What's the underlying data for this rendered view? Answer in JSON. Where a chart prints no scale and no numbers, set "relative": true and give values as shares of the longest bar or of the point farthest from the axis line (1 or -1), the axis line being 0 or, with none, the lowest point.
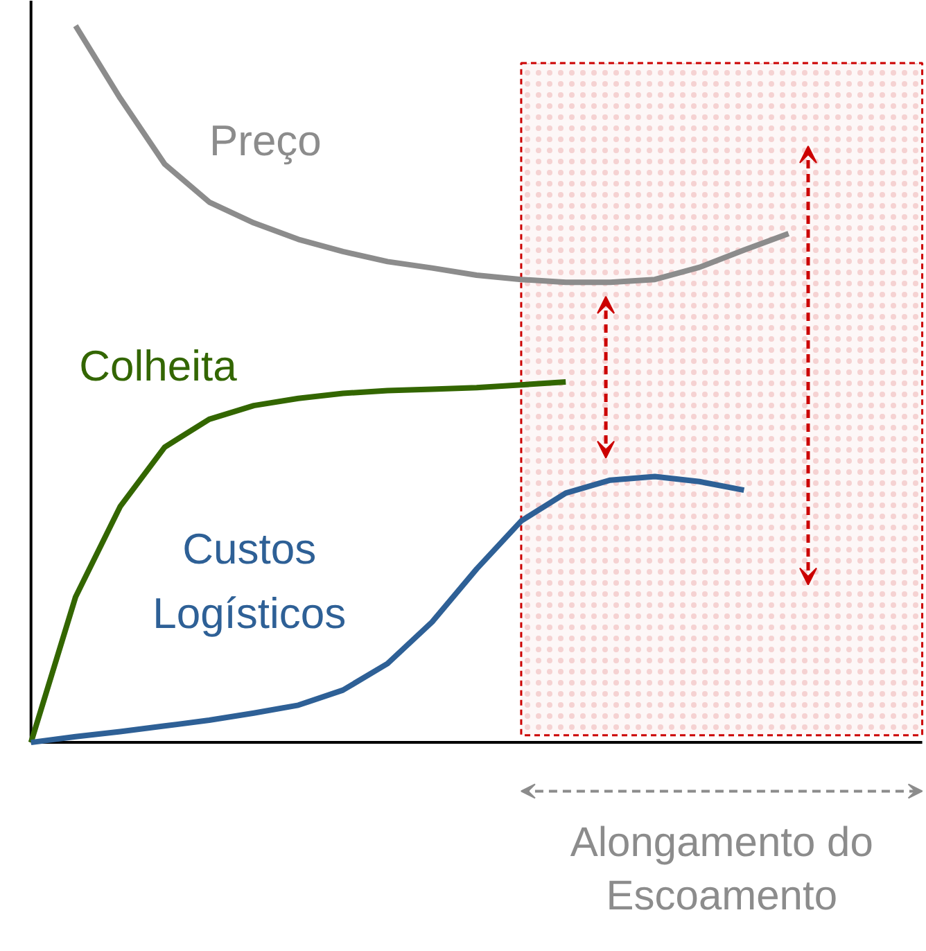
{
  "chart_data": {
    "type": "line",
    "relative": true,
    "tick_labels": false,
    "grid": false,
    "marker": "none",
    "line_style": "solid",
    "categories": [
      null,
      null,
      null,
      null,
      null,
      null,
      null,
      null,
      null,
      null,
      null,
      null,
      null,
      null,
      null,
      null,
      null,
      null,
      null,
      null,
      null
    ],
    "series": [
      {
        "name": "Preço",
        "color": "#8c8c8c",
        "values": [
          null,
          1.0,
          0.899,
          0.807,
          0.754,
          0.725,
          0.702,
          0.685,
          0.671,
          0.662,
          0.652,
          0.646,
          0.642,
          0.642,
          0.646,
          0.663,
          0.687,
          0.71,
          null,
          null,
          null
        ]
      },
      {
        "name": "Colheita",
        "color": "#336600",
        "values": [
          0,
          0.203,
          0.329,
          0.412,
          0.451,
          0.47,
          0.48,
          0.487,
          0.491,
          0.493,
          0.495,
          0.499,
          0.503,
          null,
          null,
          null,
          null,
          null,
          null,
          null,
          null
        ]
      },
      {
        "name": "Custos Logísticos",
        "color": "#2e6096",
        "values": [
          0,
          0.008,
          0.015,
          0.023,
          0.031,
          0.041,
          0.052,
          0.073,
          0.11,
          0.168,
          0.242,
          0.309,
          0.348,
          0.366,
          0.371,
          0.364,
          0.352,
          null,
          null,
          null,
          null
        ]
      }
    ],
    "annotations": [
      "Alongamento do Escoamento"
    ]
  }
}
